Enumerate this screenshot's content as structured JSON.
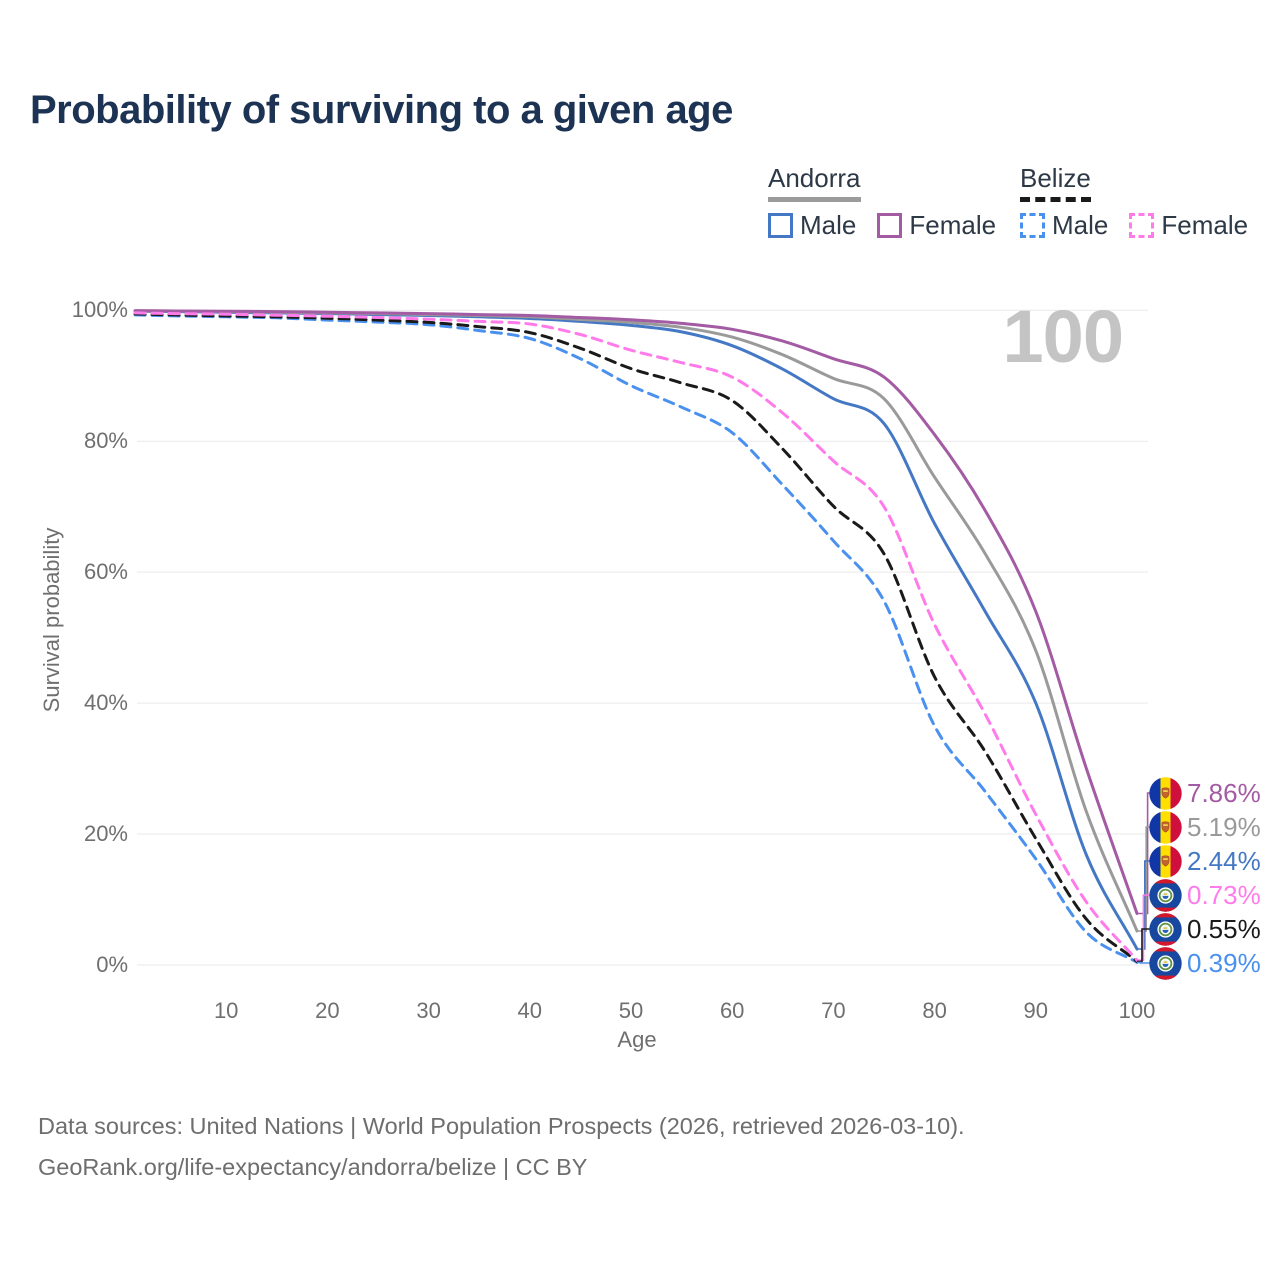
{
  "title": "Probability of surviving to a given age",
  "watermark": "100",
  "legend": {
    "groups": [
      {
        "name": "Andorra",
        "style": "solid",
        "rule_color": "#9b9b9b",
        "items": [
          {
            "label": "Male",
            "color": "#4478c4"
          },
          {
            "label": "Female",
            "color": "#a35ba3"
          }
        ]
      },
      {
        "name": "Belize",
        "style": "dashed",
        "rule_color": "#1a1a1a",
        "items": [
          {
            "label": "Male",
            "color": "#4a90ee"
          },
          {
            "label": "Female",
            "color": "#ff7bea"
          }
        ]
      }
    ]
  },
  "axes": {
    "y_title": "Survival probability",
    "x_title": "Age",
    "y_ticks": [
      "100%",
      "80%",
      "60%",
      "40%",
      "20%",
      "0%"
    ],
    "x_ticks": [
      "10",
      "20",
      "30",
      "40",
      "50",
      "60",
      "70",
      "80",
      "90",
      "100"
    ]
  },
  "end_labels": [
    {
      "value": "7.86%",
      "color": "#a35ba3",
      "flag": "andorra-flag-icon",
      "series": "Andorra Female"
    },
    {
      "value": "5.19%",
      "color": "#9a9a9a",
      "flag": "andorra-flag-icon",
      "series": "Andorra Both sexes"
    },
    {
      "value": "2.44%",
      "color": "#4478c4",
      "flag": "andorra-flag-icon",
      "series": "Andorra Male"
    },
    {
      "value": "0.73%",
      "color": "#ff7bea",
      "flag": "belize-flag-icon",
      "series": "Belize Female"
    },
    {
      "value": "0.55%",
      "color": "#1a1a1a",
      "flag": "belize-flag-icon",
      "series": "Belize Both sexes"
    },
    {
      "value": "0.39%",
      "color": "#4a90ee",
      "flag": "belize-flag-icon",
      "series": "Belize Male"
    }
  ],
  "footer": {
    "line1": "Data sources: United Nations | World Population Prospects (2026, retrieved 2026-03-10).",
    "line2": "GeoRank.org/life-expectancy/andorra/belize | CC BY"
  },
  "chart_data": {
    "type": "line",
    "title": "Probability of surviving to a given age",
    "xlabel": "Age",
    "ylabel": "Survival probability",
    "xlim": [
      0,
      100
    ],
    "ylim_percent": [
      0,
      100
    ],
    "grid": true,
    "legend_position": "top-right",
    "annotation": "100",
    "x": [
      1,
      5,
      10,
      15,
      20,
      25,
      30,
      35,
      40,
      45,
      50,
      55,
      60,
      65,
      70,
      75,
      80,
      85,
      90,
      95,
      100
    ],
    "series": [
      {
        "name": "Andorra Male",
        "country": "Andorra",
        "sex": "Male",
        "color": "#4478c4",
        "dashed": false,
        "end_value_percent": 2.44,
        "values": [
          99.85,
          99.8,
          99.7,
          99.6,
          99.5,
          99.35,
          99.2,
          99.0,
          98.75,
          98.3,
          97.7,
          96.7,
          94.6,
          91.0,
          86.5,
          82.7,
          67.4,
          54.0,
          40.0,
          16.8,
          2.44
        ]
      },
      {
        "name": "Andorra Both sexes",
        "country": "Andorra",
        "sex": "Both",
        "color": "#9a9a9a",
        "dashed": false,
        "end_value_percent": 5.19,
        "values": [
          99.9,
          99.85,
          99.8,
          99.7,
          99.6,
          99.5,
          99.35,
          99.2,
          99.0,
          98.6,
          98.15,
          97.4,
          95.9,
          93.2,
          89.6,
          86.5,
          74.5,
          62.8,
          48.0,
          23.4,
          5.19
        ]
      },
      {
        "name": "Andorra Female",
        "country": "Andorra",
        "sex": "Female",
        "color": "#a35ba3",
        "dashed": false,
        "end_value_percent": 7.86,
        "values": [
          99.95,
          99.9,
          99.85,
          99.8,
          99.7,
          99.6,
          99.5,
          99.35,
          99.2,
          98.9,
          98.55,
          98.0,
          97.1,
          95.3,
          92.6,
          89.8,
          81.0,
          69.4,
          54.0,
          30.0,
          7.86
        ]
      },
      {
        "name": "Belize Male",
        "country": "Belize",
        "sex": "Male",
        "color": "#4a90ee",
        "dashed": true,
        "end_value_percent": 0.39,
        "values": [
          99.3,
          99.15,
          99.0,
          98.85,
          98.5,
          98.2,
          97.8,
          96.9,
          95.7,
          92.6,
          88.5,
          85.2,
          81.3,
          73.3,
          64.8,
          55.6,
          36.5,
          26.5,
          16.2,
          5.0,
          0.39
        ]
      },
      {
        "name": "Belize Both sexes",
        "country": "Belize",
        "sex": "Both",
        "color": "#1a1a1a",
        "dashed": true,
        "end_value_percent": 0.55,
        "values": [
          99.45,
          99.3,
          99.15,
          99.0,
          98.8,
          98.5,
          98.15,
          97.5,
          96.6,
          94.2,
          91.1,
          88.9,
          86.2,
          78.8,
          70.1,
          62.8,
          44.0,
          32.6,
          19.3,
          7.0,
          0.55
        ]
      },
      {
        "name": "Belize Female",
        "country": "Belize",
        "sex": "Female",
        "color": "#ff7bea",
        "dashed": true,
        "end_value_percent": 0.73,
        "values": [
          99.6,
          99.5,
          99.4,
          99.25,
          99.1,
          98.9,
          98.65,
          98.3,
          97.9,
          96.3,
          93.9,
          92.0,
          89.8,
          84.3,
          77.0,
          70.0,
          52.0,
          38.3,
          23.0,
          9.6,
          0.73
        ]
      }
    ]
  }
}
